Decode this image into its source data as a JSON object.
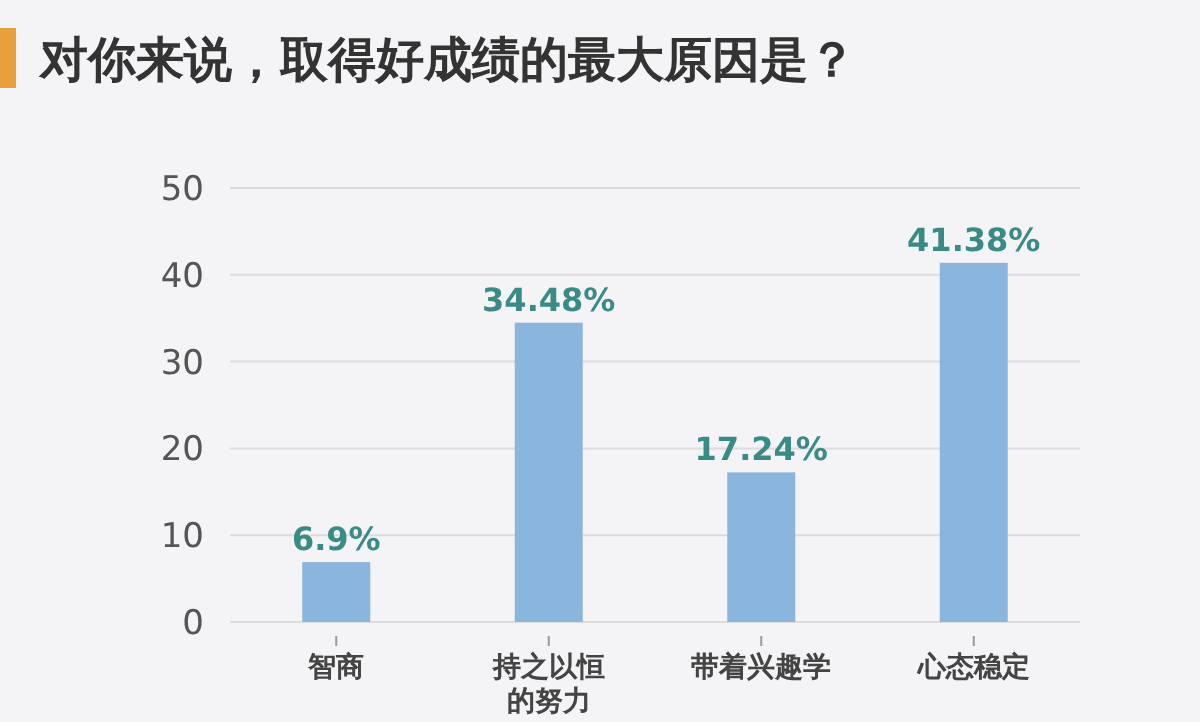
{
  "chart_data": {
    "type": "bar",
    "title": "对你来说，取得好成绩的最大原因是？",
    "categories": [
      "智商",
      "持之以恒的努力",
      "带着兴趣学",
      "心态稳定"
    ],
    "values": [
      6.9,
      34.48,
      17.24,
      41.38
    ],
    "value_labels": [
      "6.9%",
      "34.48%",
      "17.24%",
      "41.38%"
    ],
    "color": "#8ab6de",
    "ylim": [
      0,
      50
    ],
    "yticks": [
      0,
      10,
      20,
      30,
      40,
      50
    ],
    "grid": "y"
  }
}
